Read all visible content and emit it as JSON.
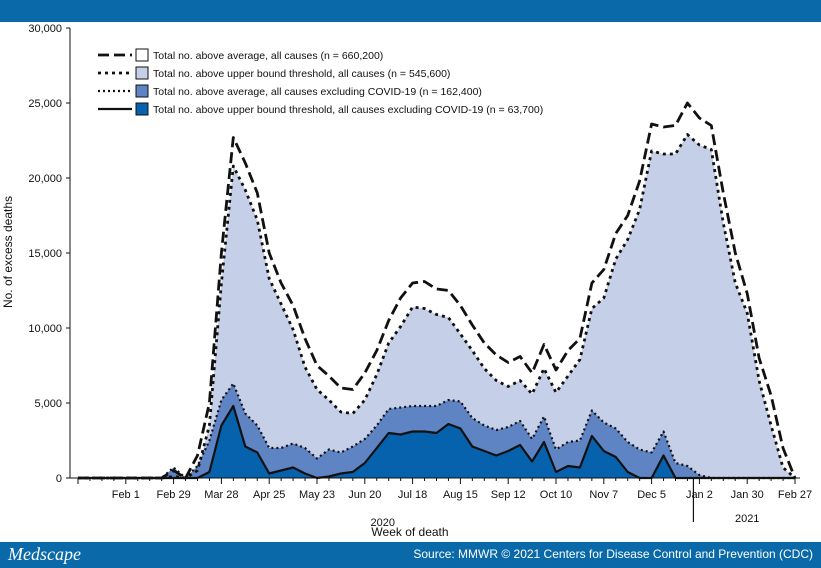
{
  "footer": {
    "brand": "Medscape",
    "source": "Source: MMWR © 2021 Centers for Disease Control and Prevention (CDC)"
  },
  "chart_data": {
    "type": "area",
    "title": "",
    "xlabel": "Week of death",
    "ylabel": "No. of excess deaths",
    "ylim": [
      0,
      30000
    ],
    "yticks": [
      "0",
      "5,000",
      "10,000",
      "15,000",
      "20,000",
      "25,000",
      "30,000"
    ],
    "xtick_labels": [
      "Feb 1",
      "Feb 29",
      "Mar 28",
      "Apr 25",
      "May 23",
      "Jun 20",
      "Jul 18",
      "Aug 15",
      "Sep 12",
      "Oct 10",
      "Nov 7",
      "Dec 5",
      "Jan 2",
      "Jan 30",
      "Feb 27"
    ],
    "year_labels": [
      "2020",
      "2021"
    ],
    "legend_position": "top-left",
    "x_weeks": [
      "2020-01-04",
      "2020-01-11",
      "2020-01-18",
      "2020-01-25",
      "2020-02-01",
      "2020-02-08",
      "2020-02-15",
      "2020-02-22",
      "2020-02-29",
      "2020-03-07",
      "2020-03-14",
      "2020-03-21",
      "2020-03-28",
      "2020-04-04",
      "2020-04-11",
      "2020-04-18",
      "2020-04-25",
      "2020-05-02",
      "2020-05-09",
      "2020-05-16",
      "2020-05-23",
      "2020-05-30",
      "2020-06-06",
      "2020-06-13",
      "2020-06-20",
      "2020-06-27",
      "2020-07-04",
      "2020-07-11",
      "2020-07-18",
      "2020-07-25",
      "2020-08-01",
      "2020-08-08",
      "2020-08-15",
      "2020-08-22",
      "2020-08-29",
      "2020-09-05",
      "2020-09-12",
      "2020-09-19",
      "2020-09-26",
      "2020-10-03",
      "2020-10-10",
      "2020-10-17",
      "2020-10-24",
      "2020-10-31",
      "2020-11-07",
      "2020-11-14",
      "2020-11-21",
      "2020-11-28",
      "2020-12-05",
      "2020-12-12",
      "2020-12-19",
      "2020-12-26",
      "2021-01-02",
      "2021-01-09",
      "2021-01-16",
      "2021-01-23",
      "2021-01-30",
      "2021-02-06",
      "2021-02-13",
      "2021-02-20",
      "2021-02-27"
    ],
    "series": [
      {
        "name": "Total no. above average, all causes (n = 660,200)",
        "style": "dashed",
        "fill": "#ffffff",
        "values": [
          0,
          0,
          0,
          0,
          0,
          0,
          0,
          0,
          500,
          0,
          1500,
          5000,
          15000,
          22700,
          21000,
          19000,
          15000,
          13000,
          11500,
          9300,
          7500,
          6800,
          6000,
          5900,
          7000,
          8500,
          10500,
          12000,
          13000,
          13100,
          12600,
          12500,
          11500,
          10200,
          9000,
          8200,
          7700,
          8100,
          7000,
          8900,
          7200,
          8500,
          9300,
          13000,
          13900,
          16300,
          17500,
          19800,
          23600,
          23400,
          23500,
          25000,
          24000,
          23500,
          19000,
          15000,
          12300,
          8000,
          5500,
          2000,
          0
        ]
      },
      {
        "name": "Total no. above upper bound threshold, all causes (n = 545,600)",
        "style": "dotted",
        "fill": "#c5cfe7",
        "values": [
          0,
          0,
          0,
          0,
          0,
          0,
          0,
          0,
          100,
          0,
          500,
          3500,
          13000,
          20800,
          19200,
          17200,
          13300,
          11600,
          9900,
          7400,
          5900,
          5200,
          4400,
          4300,
          5200,
          6900,
          9000,
          10100,
          11400,
          11300,
          10900,
          10700,
          9600,
          8500,
          7300,
          6500,
          6100,
          6500,
          5600,
          7300,
          5700,
          6800,
          7900,
          11300,
          12000,
          14600,
          15900,
          17900,
          21800,
          21600,
          21600,
          22900,
          22200,
          21900,
          17000,
          13000,
          11000,
          6500,
          3500,
          700,
          0
        ]
      },
      {
        "name": "Total no. above average, all causes excluding COVID-19 (n = 162,400)",
        "style": "dotted-fine",
        "fill": "#5f84c4",
        "values": [
          0,
          0,
          0,
          0,
          0,
          0,
          0,
          0,
          700,
          0,
          800,
          2500,
          5200,
          6300,
          4300,
          3500,
          2000,
          2000,
          2300,
          2000,
          1300,
          1900,
          1700,
          2100,
          2600,
          3500,
          4600,
          4700,
          4800,
          4800,
          4800,
          5200,
          5100,
          4000,
          3500,
          3200,
          3400,
          3800,
          2600,
          4100,
          1900,
          2400,
          2500,
          4500,
          3700,
          3300,
          2400,
          1900,
          1700,
          3100,
          1000,
          800,
          200,
          0,
          0,
          0,
          0,
          0,
          0,
          0,
          0
        ]
      },
      {
        "name": "Total no. above upper bound threshold, all causes excluding COVID-19 (n = 63,700)",
        "style": "solid",
        "fill": "#0762ad",
        "values": [
          0,
          0,
          0,
          0,
          0,
          0,
          0,
          0,
          0,
          0,
          0,
          400,
          3500,
          4800,
          2100,
          1700,
          300,
          500,
          700,
          300,
          0,
          100,
          300,
          400,
          1000,
          2000,
          3000,
          2900,
          3100,
          3100,
          3000,
          3600,
          3300,
          2100,
          1800,
          1500,
          1800,
          2200,
          1100,
          2400,
          400,
          800,
          700,
          2800,
          1800,
          1400,
          400,
          0,
          0,
          1500,
          0,
          0,
          0,
          0,
          0,
          0,
          0,
          0,
          0,
          0,
          0
        ]
      }
    ]
  }
}
